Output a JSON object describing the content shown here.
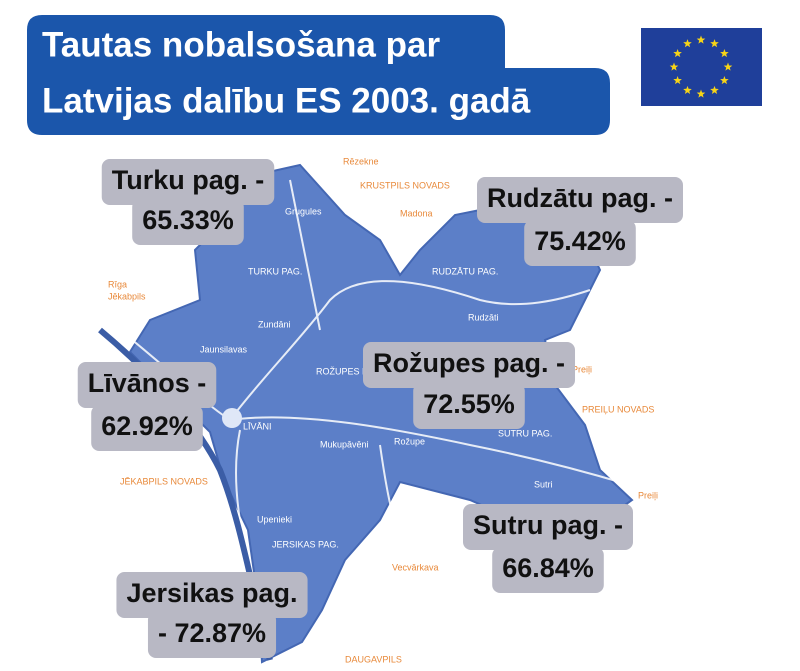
{
  "header": {
    "title_lines": [
      "Tautas nobalsošana par",
      "Latvijas  dalību ES 2003. gadā"
    ]
  },
  "results": [
    {
      "name": "Turku pag. -",
      "value": "65.33%"
    },
    {
      "name": "Rudzātu pag. -",
      "value": "75.42%"
    },
    {
      "name": "Rožupes pag. -",
      "value": "72.55%"
    },
    {
      "name": "Līvānos -",
      "value": "62.92%"
    },
    {
      "name": "Sutru pag. -",
      "value": "66.84%"
    },
    {
      "name": "Jersikas pag.",
      "value": "- 72.87%"
    }
  ],
  "map": {
    "places": [
      "Rēzekne",
      "KRUSTPILS NOVADS",
      "Madona",
      "TURKU PAG.",
      "RUDZĀTU PAG.",
      "Rīga",
      "Jēkabpils",
      "LĪVĀNI",
      "ROŽUPES PAG.",
      "SUTRU PAG.",
      "PREIĻU NOVADS",
      "JĒKABPILS NOVADS",
      "JERSIKAS PAG.",
      "Vecvārkava",
      "DAUGAVPILS",
      "Preiļi",
      "Preiļi",
      "Rožupe",
      "Sutri",
      "Upenieki",
      "Jaunsilavas",
      "Zundāni",
      "Grugules",
      "Rudzāti",
      "Mukupāvēni"
    ]
  }
}
